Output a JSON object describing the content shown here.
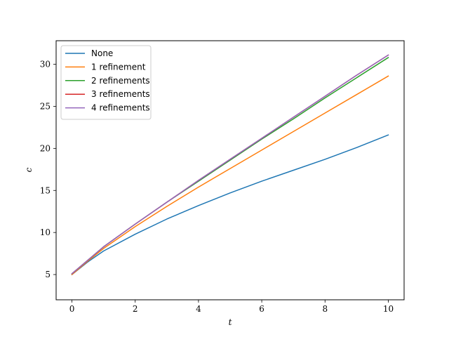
{
  "chart_data": {
    "type": "line",
    "xlabel": "t",
    "ylabel": "c",
    "xlim": [
      -0.5,
      10.5
    ],
    "ylim": [
      2.0,
      32.8
    ],
    "xticks": [
      0,
      2,
      4,
      6,
      8,
      10
    ],
    "yticks": [
      5,
      10,
      15,
      20,
      25,
      30
    ],
    "legend_position": "top-left",
    "grid": false,
    "x": [
      0,
      0.5,
      1,
      2,
      3,
      4,
      5,
      6,
      7,
      8,
      9,
      10
    ],
    "series": [
      {
        "name": "None",
        "color": "#1f77b4",
        "values": [
          5.0,
          6.5,
          7.8,
          9.8,
          11.6,
          13.2,
          14.7,
          16.1,
          17.4,
          18.7,
          20.1,
          21.6
        ]
      },
      {
        "name": "1 refinement",
        "color": "#ff7f0e",
        "values": [
          5.0,
          6.6,
          8.1,
          10.7,
          13.1,
          15.4,
          17.6,
          19.8,
          22.0,
          24.2,
          26.4,
          28.6
        ]
      },
      {
        "name": "2 refinements",
        "color": "#2ca02c",
        "values": [
          5.1,
          6.7,
          8.3,
          11.0,
          13.6,
          16.1,
          18.6,
          21.1,
          23.5,
          26.0,
          28.4,
          30.8
        ]
      },
      {
        "name": "3 refinements",
        "color": "#d62728",
        "values": [
          5.1,
          6.7,
          8.3,
          11.0,
          13.6,
          16.2,
          18.7,
          21.2,
          23.7,
          26.2,
          28.7,
          31.1
        ]
      },
      {
        "name": "4 refinements",
        "color": "#9467bd",
        "values": [
          5.1,
          6.7,
          8.3,
          11.0,
          13.6,
          16.2,
          18.7,
          21.2,
          23.7,
          26.2,
          28.7,
          31.1
        ]
      }
    ]
  }
}
